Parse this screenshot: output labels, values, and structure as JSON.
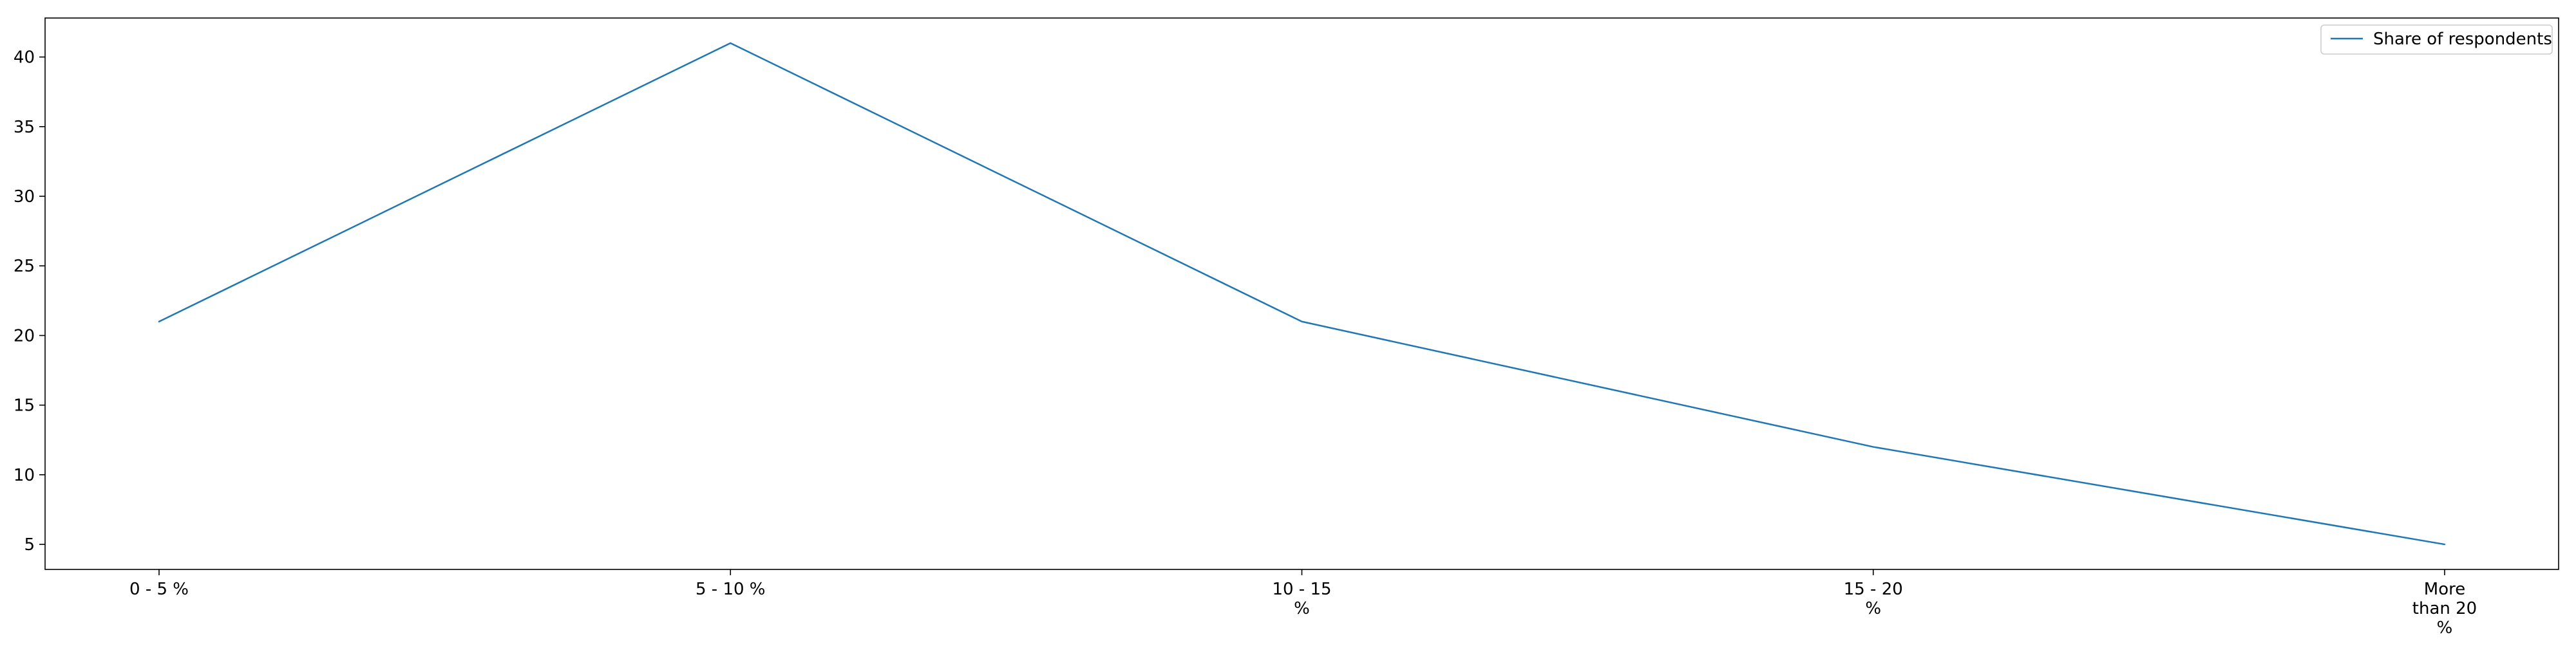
{
  "chart_data": {
    "type": "line",
    "title": "",
    "xlabel": "",
    "ylabel": "",
    "categories": [
      "0 - 5 %",
      "5 - 10 %",
      "10 - 15 %",
      "15 - 20 %",
      "More than 20 %"
    ],
    "category_label_lines": [
      [
        "0 - 5 %"
      ],
      [
        "5 - 10 %"
      ],
      [
        "10 - 15",
        "%"
      ],
      [
        "15 - 20",
        "%"
      ],
      [
        "More",
        "than 20",
        "%"
      ]
    ],
    "series": [
      {
        "name": "Share of respondents",
        "values": [
          21,
          41,
          21,
          12,
          5
        ],
        "color": "#1f77b4"
      }
    ],
    "ylim": [
      3.2,
      42.8
    ],
    "yticks": [
      5,
      10,
      15,
      20,
      25,
      30,
      35,
      40
    ],
    "grid": false,
    "legend": {
      "position": "top-right",
      "entries": [
        "Share of respondents"
      ]
    }
  }
}
